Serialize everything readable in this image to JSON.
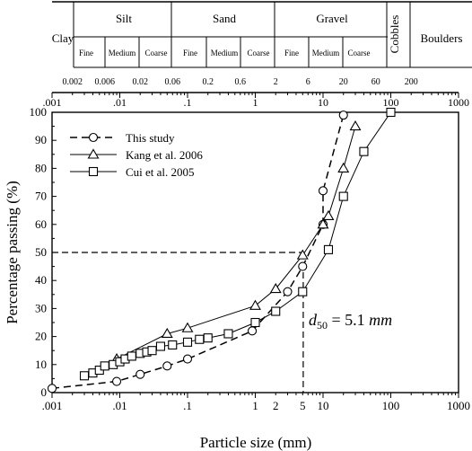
{
  "chart_data": {
    "type": "line",
    "xscale": "log",
    "xlim": [
      0.001,
      1000
    ],
    "ylim": [
      0,
      100
    ],
    "xlabel": "Particle size (mm)",
    "ylabel": "Percentage passing (%)",
    "xticklabels": [
      ".001",
      ".01",
      ".1",
      "1",
      "10",
      "100",
      "1000"
    ],
    "xticklabels_minor": [
      "2",
      "5"
    ],
    "top_ticklabels": [
      ".001",
      ".01",
      ".1",
      "1",
      "10",
      "100",
      "1000"
    ],
    "yticklabels": [
      "0",
      "10",
      "20",
      "30",
      "40",
      "50",
      "60",
      "70",
      "80",
      "90",
      "100"
    ],
    "legend_position": "top-left",
    "series": [
      {
        "name": "This study",
        "marker": "circle",
        "line": "dashed",
        "x": [
          0.001,
          0.009,
          0.02,
          0.05,
          0.1,
          0.9,
          3,
          5,
          10,
          10,
          20
        ],
        "y": [
          1.5,
          4,
          6.5,
          9.5,
          12,
          22,
          36,
          45,
          60,
          72,
          99
        ]
      },
      {
        "name": "Kang et al. 2006",
        "marker": "triangle",
        "line": "solid",
        "x": [
          0.009,
          0.05,
          0.1,
          1,
          2,
          5,
          10,
          12,
          20,
          30
        ],
        "y": [
          12,
          21,
          23,
          31,
          37,
          49,
          60,
          63,
          80,
          95
        ]
      },
      {
        "name": "Cui et al. 2005",
        "marker": "square",
        "line": "solid",
        "x": [
          0.003,
          0.004,
          0.005,
          0.006,
          0.008,
          0.01,
          0.012,
          0.015,
          0.02,
          0.025,
          0.03,
          0.04,
          0.06,
          0.1,
          0.15,
          0.2,
          0.4,
          1,
          2,
          5,
          12,
          20,
          40,
          100
        ],
        "y": [
          6,
          7,
          8,
          9.5,
          10,
          11,
          12,
          13,
          14,
          14.5,
          15,
          16.5,
          17,
          18,
          19,
          19.5,
          21,
          25,
          29,
          36,
          51,
          70,
          86,
          100
        ]
      }
    ],
    "annotations": {
      "d50_prefix": "d",
      "d50_sub": "50",
      "d50_eq": " = 5.1 ",
      "d50_unit": "mm",
      "d50_x": 5.1,
      "d50_y": 50
    }
  },
  "classification": {
    "clay": "Clay",
    "silt": "Silt",
    "sand": "Sand",
    "gravel": "Gravel",
    "cobbles": "Cobbles",
    "boulders": "Boulders",
    "silt_sub": [
      "Fine",
      "Medium",
      "Coarse"
    ],
    "sand_sub": [
      "Fine",
      "Medium",
      "Coarse"
    ],
    "gravel_sub": [
      "Fine",
      "Medium",
      "Coarse"
    ],
    "boundary_labels": [
      "0.002",
      "0.006",
      "0.02",
      "0.06",
      "0.2",
      "0.6",
      "2",
      "6",
      "20",
      "60",
      "200"
    ]
  }
}
